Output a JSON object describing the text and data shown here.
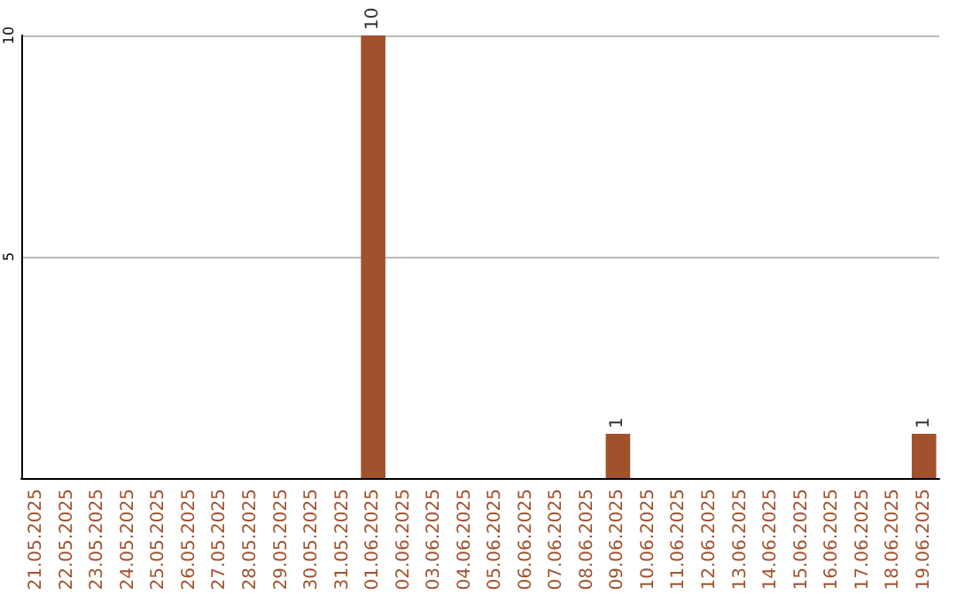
{
  "chart_data": {
    "type": "bar",
    "categories": [
      "21.05.2025",
      "22.05.2025",
      "23.05.2025",
      "24.05.2025",
      "25.05.2025",
      "26.05.2025",
      "27.05.2025",
      "28.05.2025",
      "29.05.2025",
      "30.05.2025",
      "31.05.2025",
      "01.06.2025",
      "02.06.2025",
      "03.06.2025",
      "04.06.2025",
      "05.06.2025",
      "06.06.2025",
      "07.06.2025",
      "08.06.2025",
      "09.06.2025",
      "10.06.2025",
      "11.06.2025",
      "12.06.2025",
      "13.06.2025",
      "14.06.2025",
      "15.06.2025",
      "16.06.2025",
      "17.06.2025",
      "18.06.2025",
      "19.06.2025"
    ],
    "values": [
      0,
      0,
      0,
      0,
      0,
      0,
      0,
      0,
      0,
      0,
      0,
      10,
      0,
      0,
      0,
      0,
      0,
      0,
      0,
      1,
      0,
      0,
      0,
      0,
      0,
      0,
      0,
      0,
      0,
      1
    ],
    "value_labels": [
      null,
      null,
      null,
      null,
      null,
      null,
      null,
      null,
      null,
      null,
      null,
      "10",
      null,
      null,
      null,
      null,
      null,
      null,
      null,
      "1",
      null,
      null,
      null,
      null,
      null,
      null,
      null,
      null,
      null,
      "1"
    ],
    "color": "#a0522d",
    "ylim": [
      0,
      10
    ],
    "yticks": [
      5,
      10
    ],
    "grid": "y"
  }
}
